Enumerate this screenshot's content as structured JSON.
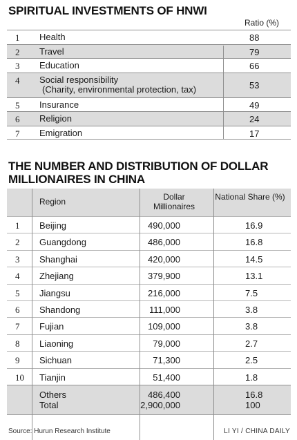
{
  "chart_data": [
    {
      "type": "table",
      "title": "SPIRITUAL INVESTMENTS OF HNWI",
      "columns": [
        "",
        "",
        "Ratio (%)"
      ],
      "rows": [
        {
          "rank": "1",
          "label": "Health",
          "value": "88"
        },
        {
          "rank": "2",
          "label": "Travel",
          "value": "79"
        },
        {
          "rank": "3",
          "label": "Education",
          "value": "66"
        },
        {
          "rank": "4",
          "label": "Social responsibility",
          "sublabel": "(Charity, environmental protection, tax)",
          "value": "53"
        },
        {
          "rank": "5",
          "label": "Insurance",
          "value": "49"
        },
        {
          "rank": "6",
          "label": "Religion",
          "value": "24"
        },
        {
          "rank": "7",
          "label": "Emigration",
          "value": "17"
        }
      ]
    },
    {
      "type": "table",
      "title": "THE NUMBER AND DISTRIBUTION OF DOLLAR MILLIONAIRES IN CHINA",
      "columns": [
        "Region",
        "Dollar Millionaires",
        "National Share (%)"
      ],
      "rows": [
        {
          "rank": "1",
          "region": "Beijing",
          "millionaires": "490,000",
          "share": "16.9"
        },
        {
          "rank": "2",
          "region": "Guangdong",
          "millionaires": "486,000",
          "share": "16.8"
        },
        {
          "rank": "3",
          "region": "Shanghai",
          "millionaires": "420,000",
          "share": "14.5"
        },
        {
          "rank": "4",
          "region": "Zhejiang",
          "millionaires": "379,900",
          "share": "13.1"
        },
        {
          "rank": "5",
          "region": "Jiangsu",
          "millionaires": "216,000",
          "share": "7.5"
        },
        {
          "rank": "6",
          "region": "Shandong",
          "millionaires": "111,000",
          "share": "3.8"
        },
        {
          "rank": "7",
          "region": "Fujian",
          "millionaires": "109,000",
          "share": "3.8"
        },
        {
          "rank": "8",
          "region": "Liaoning",
          "millionaires": "79,000",
          "share": "2.7"
        },
        {
          "rank": "9",
          "region": "Sichuan",
          "millionaires": "71,300",
          "share": "2.5"
        },
        {
          "rank": "10",
          "region": "Tianjin",
          "millionaires": "51,400",
          "share": "1.8"
        }
      ],
      "footer": [
        {
          "region": "Others",
          "millionaires": "486,400",
          "share": "16.8"
        },
        {
          "region": "Total",
          "millionaires": "2,900,000",
          "share": "100"
        }
      ]
    }
  ],
  "source": "Source: Hurun Research Institute",
  "credit": "LI YI / CHINA DAILY",
  "colors": {
    "shade": "#dcdcdc",
    "rule": "#8e8e8e",
    "text": "#1a1a1a"
  }
}
